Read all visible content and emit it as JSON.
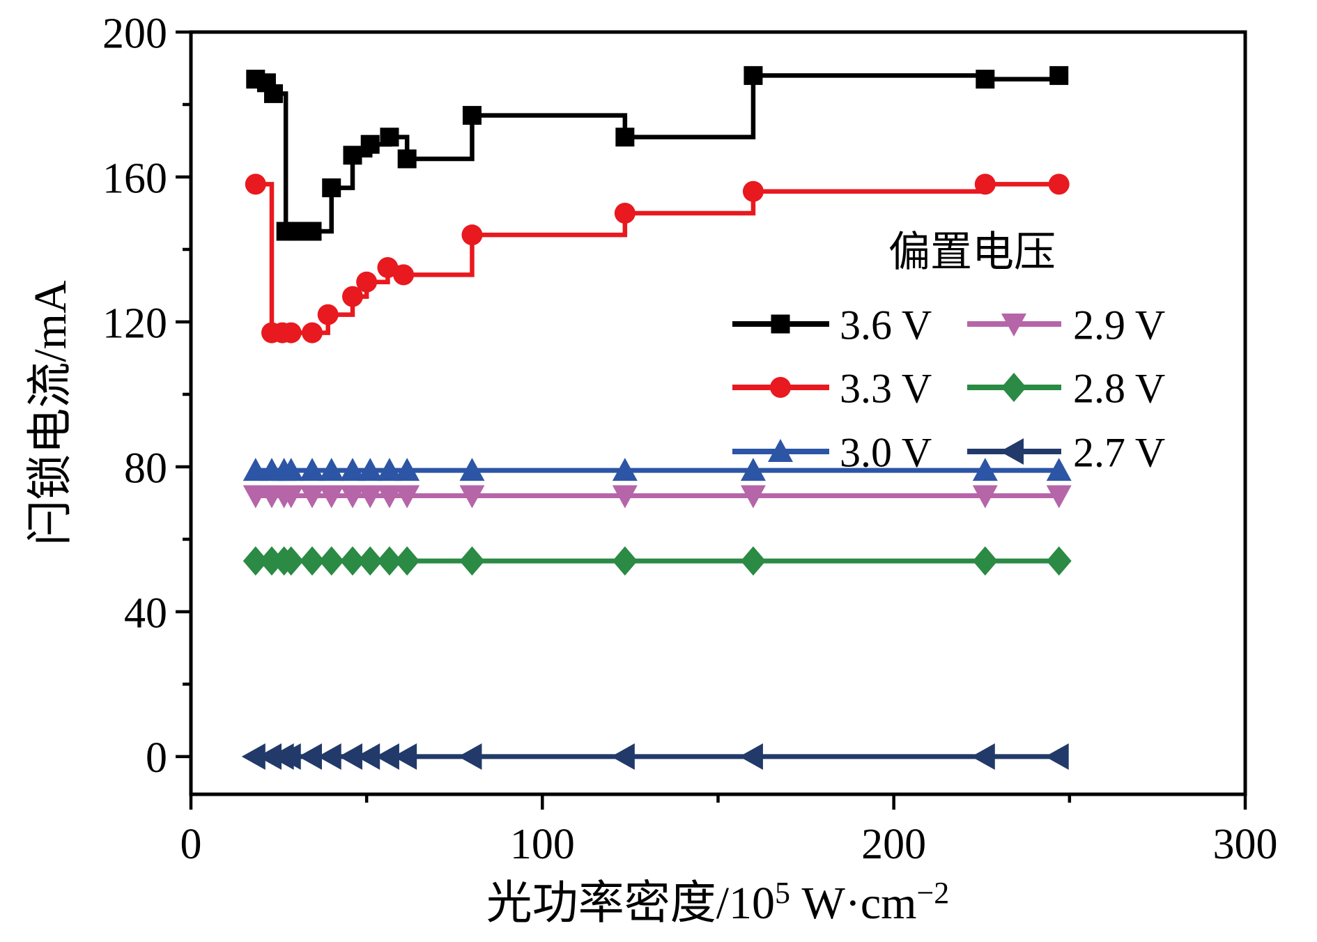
{
  "figure": {
    "type": "scientific-line-chart",
    "background": "#ffffff"
  },
  "chart_data": {
    "type": "line",
    "title": "",
    "xlabel": "光功率密度/10⁵ W·cm⁻²",
    "ylabel": "闩锁电流/mA",
    "xlabel_parts": [
      {
        "text": "光功率密度/10",
        "sup": false
      },
      {
        "text": "5",
        "sup": true
      },
      {
        "text": " W·cm",
        "sup": false
      },
      {
        "text": "−2",
        "sup": true
      }
    ],
    "xlim": [
      0,
      300
    ],
    "ylim": [
      -10.4,
      200
    ],
    "x_major_ticks": [
      "0",
      "100",
      "200",
      "300"
    ],
    "x_major_tick_values": [
      0,
      100,
      200,
      300
    ],
    "x_minor_tick_values": [
      50,
      150,
      250
    ],
    "y_major_ticks": [
      "0",
      "40",
      "80",
      "120",
      "160",
      "200"
    ],
    "y_major_tick_values": [
      0,
      40,
      80,
      120,
      160,
      200
    ],
    "y_minor_tick_values": [
      20,
      60,
      100,
      140,
      180
    ],
    "grid": false,
    "step_style": "post",
    "legend": {
      "title": "偏置电压",
      "columns": 2,
      "position": "upper-right-inside",
      "entries": [
        "3.6 V",
        "3.3 V",
        "3.0 V",
        "2.9 V",
        "2.8 V",
        "2.7 V"
      ]
    },
    "series": [
      {
        "name": "3.6 V",
        "color": "#000000",
        "marker": "square",
        "x": [
          18.4,
          21.5,
          23.5,
          27,
          30,
          34.5,
          40,
          46,
          51,
          56.5,
          61.5,
          80,
          123.5,
          160,
          226,
          247
        ],
        "y": [
          187,
          186,
          183,
          145,
          145,
          145,
          157,
          166,
          169,
          171,
          165,
          177,
          171,
          188,
          187,
          188
        ]
      },
      {
        "name": "3.3 V",
        "color": "#e8191f",
        "marker": "circle",
        "x": [
          18.4,
          23,
          26,
          28.5,
          34.5,
          39,
          46,
          50,
          56,
          60.5,
          80,
          123.5,
          160,
          226,
          247
        ],
        "y": [
          158,
          117,
          117,
          117,
          117,
          122,
          127,
          131,
          135,
          133,
          144,
          150,
          156,
          158,
          158
        ]
      },
      {
        "name": "3.0 V",
        "color": "#2d55a5",
        "marker": "triangle-up",
        "x": [
          18.4,
          23,
          26.5,
          28.5,
          34.5,
          40,
          46,
          51,
          56.5,
          61.5,
          80,
          123.5,
          160,
          226,
          247
        ],
        "y": [
          79,
          79,
          79,
          79,
          79,
          79,
          79,
          79,
          79,
          79,
          79,
          79,
          79,
          79,
          79
        ]
      },
      {
        "name": "2.9 V",
        "color": "#b565a8",
        "marker": "triangle-down",
        "x": [
          18.4,
          23,
          26.5,
          28.5,
          34.5,
          40,
          46,
          51,
          56.5,
          61.5,
          80,
          123.5,
          160,
          226,
          247
        ],
        "y": [
          72,
          72,
          72,
          72,
          72,
          72,
          72,
          72,
          72,
          72,
          72,
          72,
          72,
          72,
          72
        ]
      },
      {
        "name": "2.8 V",
        "color": "#2b8a44",
        "marker": "diamond",
        "x": [
          18.4,
          23,
          26.5,
          28.5,
          34.5,
          40,
          46,
          51,
          56.5,
          61.5,
          80,
          123.5,
          160,
          226,
          247
        ],
        "y": [
          54,
          54,
          54,
          54,
          54,
          54,
          54,
          54,
          54,
          54,
          54,
          54,
          54,
          54,
          54
        ]
      },
      {
        "name": "2.7 V",
        "color": "#223a69",
        "marker": "triangle-left",
        "x": [
          18.4,
          23,
          26.5,
          28.5,
          34.5,
          40,
          46,
          51,
          56.5,
          61.5,
          80,
          123.5,
          160,
          226,
          247
        ],
        "y": [
          0,
          0,
          0,
          0,
          0,
          0,
          0,
          0,
          0,
          0,
          0,
          0,
          0,
          0,
          0
        ]
      }
    ]
  }
}
